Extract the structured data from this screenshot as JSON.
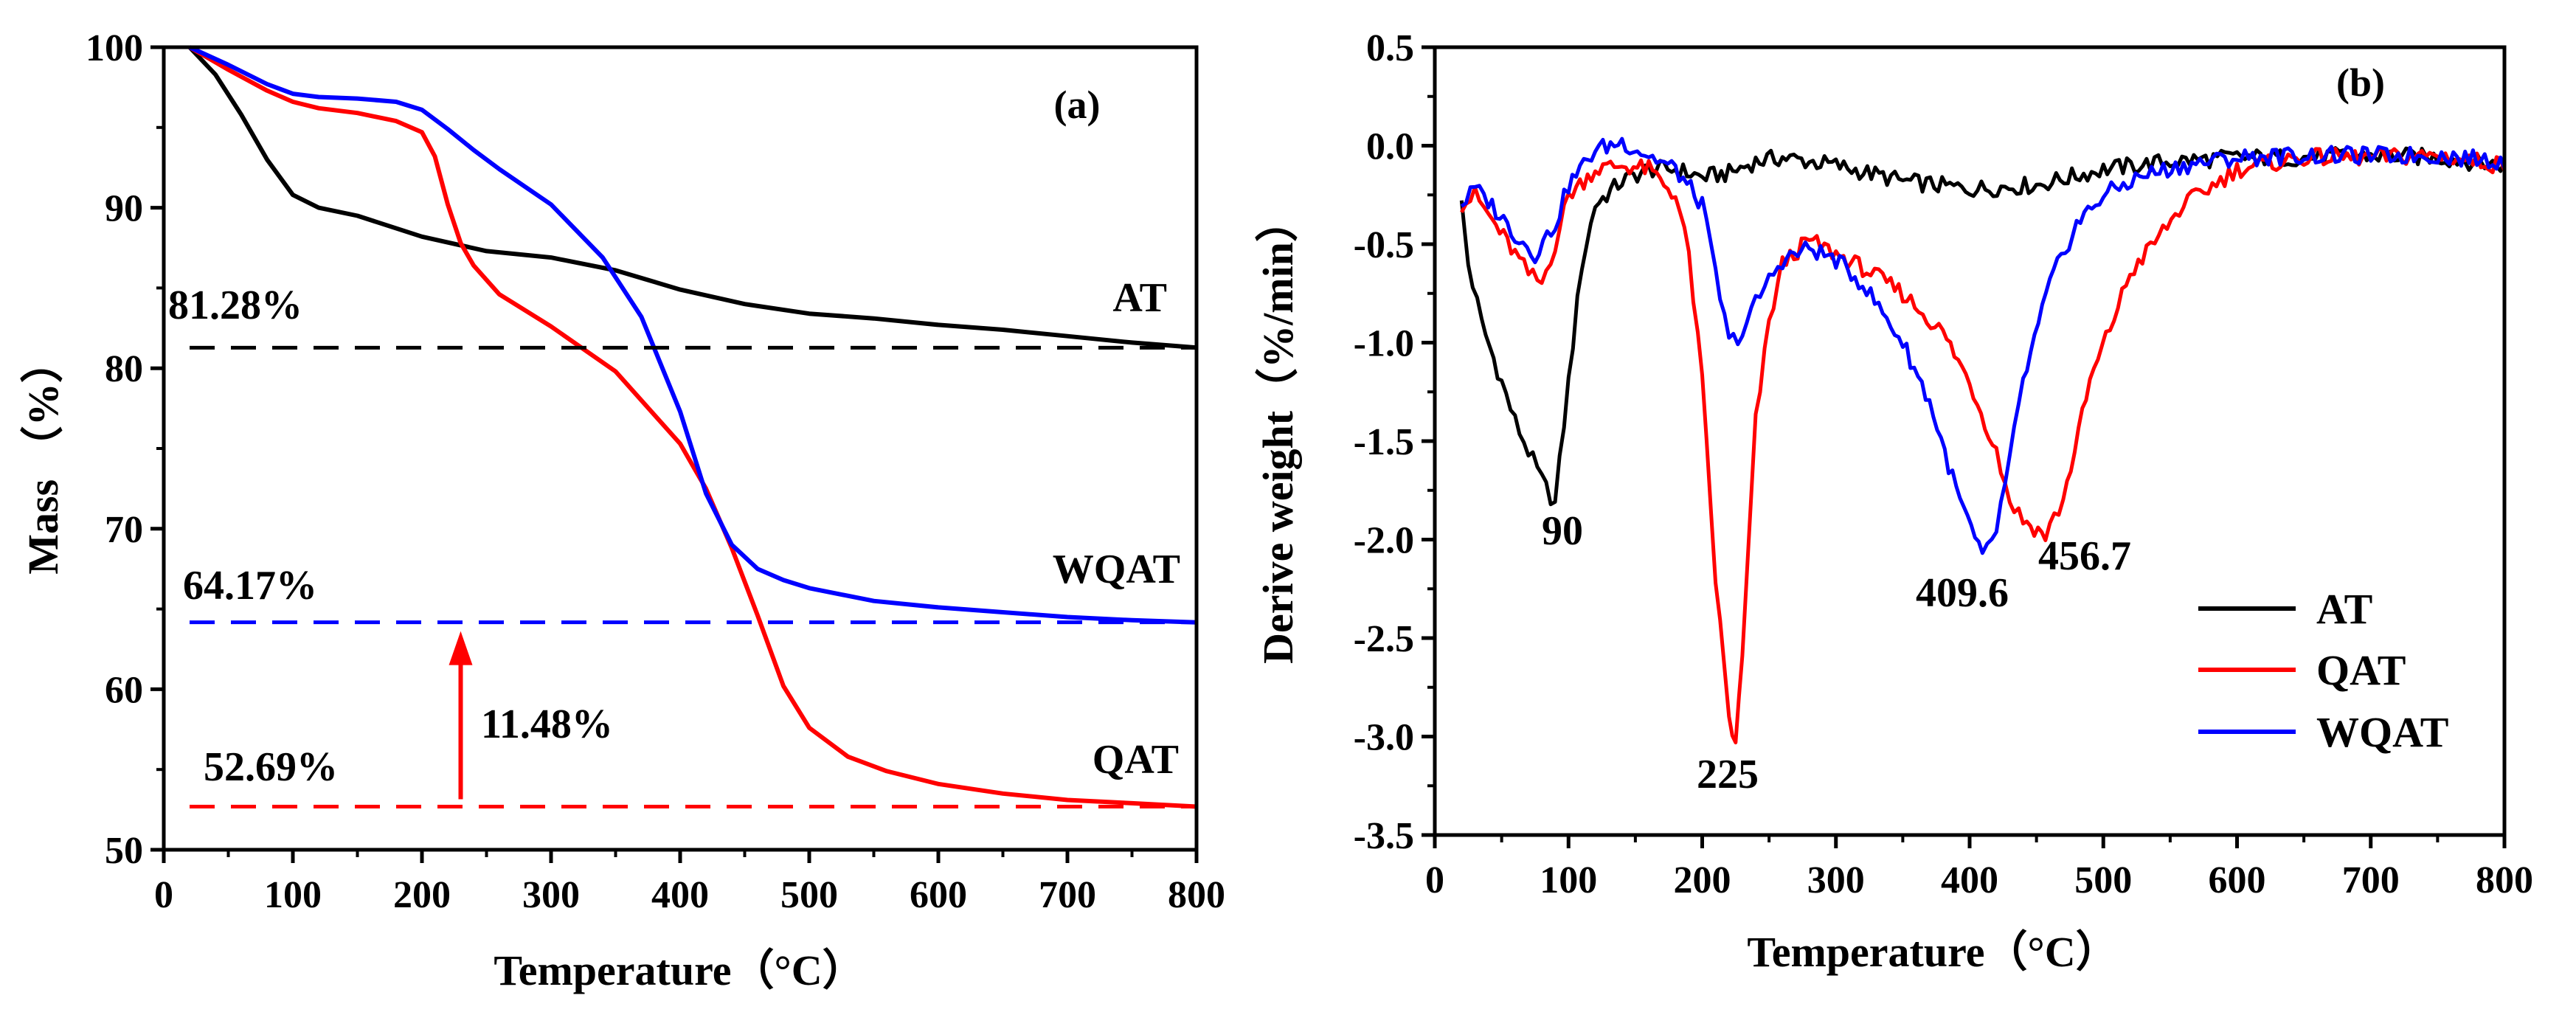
{
  "chart_data": [
    {
      "type": "line",
      "panel_label": "(a)",
      "xlabel": "Temperature（°C）",
      "ylabel": "Mass （%）",
      "xlim": [
        0,
        800
      ],
      "ylim": [
        50,
        100
      ],
      "xticks": [
        "0",
        "100",
        "200",
        "300",
        "400",
        "500",
        "600",
        "700",
        "800"
      ],
      "yticks": [
        "50",
        "60",
        "70",
        "80",
        "90",
        "100"
      ],
      "grid": false,
      "series": [
        {
          "name": "AT",
          "color": "#000000",
          "x": [
            20,
            40,
            60,
            80,
            100,
            120,
            150,
            200,
            250,
            300,
            350,
            400,
            450,
            500,
            550,
            600,
            650,
            700,
            750,
            800
          ],
          "y": [
            100,
            98.3,
            95.8,
            93.0,
            90.8,
            90.0,
            89.5,
            88.2,
            87.3,
            86.9,
            86.1,
            84.9,
            84.0,
            83.4,
            83.1,
            82.7,
            82.4,
            82.0,
            81.6,
            81.28
          ]
        },
        {
          "name": "QAT",
          "color": "#ff0000",
          "x": [
            20,
            50,
            80,
            100,
            120,
            150,
            180,
            200,
            210,
            220,
            230,
            240,
            260,
            300,
            350,
            400,
            420,
            440,
            460,
            480,
            500,
            530,
            560,
            600,
            650,
            700,
            750,
            800
          ],
          "y": [
            100,
            98.6,
            97.3,
            96.6,
            96.2,
            95.9,
            95.4,
            94.7,
            93.2,
            90.2,
            87.8,
            86.4,
            84.6,
            82.6,
            79.8,
            75.3,
            72.5,
            68.8,
            64.6,
            60.2,
            57.6,
            55.8,
            54.9,
            54.1,
            53.5,
            53.1,
            52.9,
            52.69
          ]
        },
        {
          "name": "WQAT",
          "color": "#0000ff",
          "x": [
            20,
            50,
            80,
            100,
            120,
            150,
            180,
            200,
            220,
            240,
            260,
            300,
            340,
            370,
            400,
            420,
            440,
            460,
            480,
            500,
            550,
            600,
            650,
            700,
            750,
            800
          ],
          "y": [
            100,
            98.9,
            97.7,
            97.1,
            96.9,
            96.8,
            96.6,
            96.1,
            94.9,
            93.6,
            92.4,
            90.2,
            86.9,
            83.2,
            77.3,
            72.2,
            69.0,
            67.5,
            66.8,
            66.3,
            65.5,
            65.1,
            64.8,
            64.5,
            64.3,
            64.17
          ]
        }
      ],
      "reference_lines": [
        {
          "name": "AT residue",
          "y": 81.28,
          "label": "81.28%",
          "color": "#000000"
        },
        {
          "name": "WQAT residue",
          "y": 64.17,
          "label": "64.17%",
          "color": "#0000ff"
        },
        {
          "name": "QAT residue",
          "y": 52.69,
          "label": "52.69%",
          "color": "#ff0000"
        }
      ],
      "arrow": {
        "x": 230,
        "from_y": 52.69,
        "to_y": 64.17,
        "label": "11.48%",
        "color": "#ff0000"
      },
      "end_labels": [
        "AT",
        "WQAT",
        "QAT"
      ]
    },
    {
      "type": "line",
      "panel_label": "(b)",
      "xlabel": "Temperature（°C）",
      "ylabel": "Derive weight（%/min）",
      "xlim": [
        0,
        800
      ],
      "ylim": [
        -3.5,
        0.5
      ],
      "xticks": [
        "0",
        "100",
        "200",
        "300",
        "400",
        "500",
        "600",
        "700",
        "800"
      ],
      "yticks": [
        "-3.5",
        "-3.0",
        "-2.5",
        "-2.0",
        "-1.5",
        "-1.0",
        "-0.5",
        "0.0",
        "0.5"
      ],
      "grid": false,
      "legend_position": "bottom-right",
      "series": [
        {
          "name": "AT",
          "color": "#000000",
          "x": [
            20,
            25,
            35,
            50,
            60,
            70,
            80,
            90,
            100,
            110,
            120,
            140,
            160,
            180,
            200,
            220,
            240,
            260,
            280,
            300,
            350,
            400,
            450,
            500,
            550,
            600,
            650,
            700,
            750,
            800
          ],
          "y": [
            -0.3,
            -0.6,
            -0.9,
            -1.2,
            -1.4,
            -1.55,
            -1.7,
            -1.82,
            -1.2,
            -0.6,
            -0.3,
            -0.18,
            -0.12,
            -0.12,
            -0.16,
            -0.14,
            -0.08,
            -0.06,
            -0.08,
            -0.1,
            -0.18,
            -0.22,
            -0.2,
            -0.12,
            -0.08,
            -0.06,
            -0.06,
            -0.05,
            -0.06,
            -0.1
          ]
        },
        {
          "name": "QAT",
          "color": "#ff0000",
          "x": [
            20,
            30,
            40,
            60,
            70,
            80,
            90,
            100,
            120,
            140,
            160,
            180,
            190,
            200,
            210,
            220,
            225,
            230,
            240,
            250,
            260,
            280,
            300,
            320,
            350,
            380,
            400,
            420,
            430,
            440,
            456.7,
            470,
            490,
            520,
            560,
            600,
            650,
            700,
            750,
            800
          ],
          "y": [
            -0.3,
            -0.25,
            -0.35,
            -0.55,
            -0.65,
            -0.7,
            -0.5,
            -0.25,
            -0.12,
            -0.1,
            -0.12,
            -0.25,
            -0.55,
            -1.2,
            -2.2,
            -2.9,
            -3.05,
            -2.6,
            -1.4,
            -0.9,
            -0.6,
            -0.48,
            -0.55,
            -0.62,
            -0.75,
            -0.95,
            -1.2,
            -1.55,
            -1.8,
            -1.9,
            -1.98,
            -1.8,
            -1.2,
            -0.65,
            -0.3,
            -0.12,
            -0.06,
            -0.06,
            -0.05,
            -0.1
          ]
        },
        {
          "name": "WQAT",
          "color": "#0000ff",
          "x": [
            20,
            30,
            40,
            60,
            75,
            90,
            100,
            120,
            140,
            160,
            180,
            200,
            210,
            220,
            230,
            240,
            250,
            260,
            280,
            300,
            320,
            350,
            370,
            390,
            409.6,
            420,
            430,
            440,
            460,
            480,
            500,
            530,
            560,
            600,
            650,
            700,
            750,
            800
          ],
          "y": [
            -0.3,
            -0.22,
            -0.28,
            -0.45,
            -0.55,
            -0.4,
            -0.2,
            -0.02,
            0.02,
            -0.05,
            -0.12,
            -0.3,
            -0.65,
            -1.0,
            -0.95,
            -0.8,
            -0.68,
            -0.58,
            -0.52,
            -0.58,
            -0.7,
            -1.0,
            -1.3,
            -1.75,
            -2.1,
            -1.95,
            -1.6,
            -1.2,
            -0.7,
            -0.4,
            -0.25,
            -0.15,
            -0.1,
            -0.06,
            -0.05,
            -0.05,
            -0.05,
            -0.08
          ]
        }
      ],
      "peak_labels": [
        {
          "text": "90",
          "x": 90,
          "y": -1.82
        },
        {
          "text": "225",
          "x": 225,
          "y": -3.05
        },
        {
          "text": "409.6",
          "x": 409.6,
          "y": -2.1
        },
        {
          "text": "456.7",
          "x": 456.7,
          "y": -1.98
        }
      ],
      "legend": [
        "AT",
        "QAT",
        "WQAT"
      ]
    }
  ]
}
